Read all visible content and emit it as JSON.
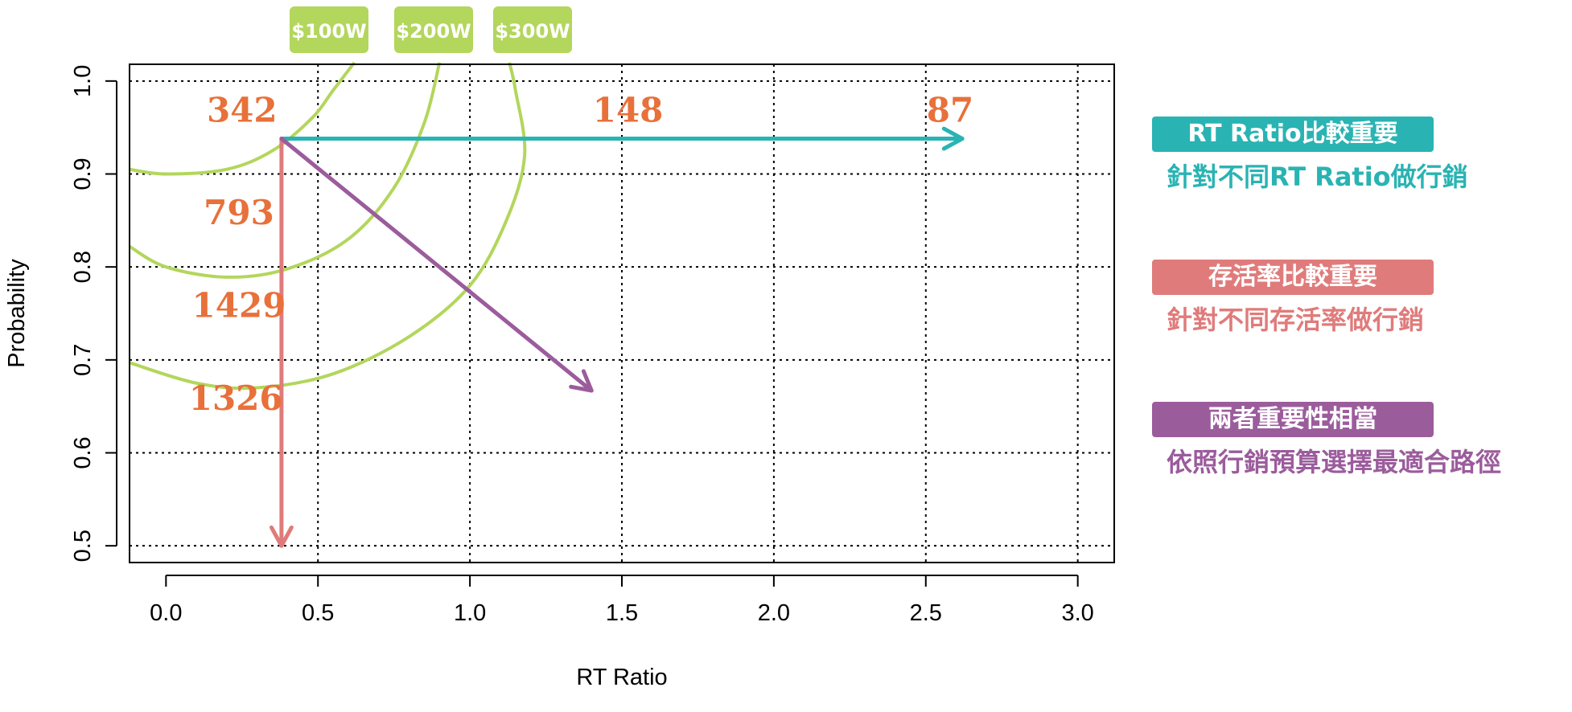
{
  "chart_data": {
    "type": "line",
    "xlabel": "RT Ratio",
    "ylabel": "Probability",
    "xlim": [
      -0.12,
      3.12
    ],
    "ylim": [
      0.482,
      1.018
    ],
    "x_ticks": [
      "0.0",
      "0.5",
      "1.0",
      "1.5",
      "2.0",
      "2.5",
      "3.0"
    ],
    "y_ticks": [
      "0.5",
      "0.6",
      "0.7",
      "0.8",
      "0.9",
      "1.0"
    ],
    "grid": true,
    "budget_labels": [
      "$100W",
      "$200W",
      "$300W"
    ],
    "budget_color": "#b3d65c",
    "budget_curves": [
      {
        "name": "$100W",
        "points": [
          [
            -0.12,
            0.905
          ],
          [
            0.0,
            0.9
          ],
          [
            0.2,
            0.905
          ],
          [
            0.35,
            0.925
          ],
          [
            0.48,
            0.96
          ],
          [
            0.55,
            0.99
          ],
          [
            0.62,
            1.02
          ]
        ]
      },
      {
        "name": "$200W",
        "points": [
          [
            -0.12,
            0.822
          ],
          [
            0.0,
            0.8
          ],
          [
            0.2,
            0.789
          ],
          [
            0.4,
            0.798
          ],
          [
            0.6,
            0.83
          ],
          [
            0.75,
            0.885
          ],
          [
            0.85,
            0.955
          ],
          [
            0.9,
            1.02
          ]
        ]
      },
      {
        "name": "$300W",
        "points": [
          [
            -0.12,
            0.697
          ],
          [
            0.1,
            0.675
          ],
          [
            0.3,
            0.67
          ],
          [
            0.55,
            0.685
          ],
          [
            0.8,
            0.725
          ],
          [
            1.0,
            0.78
          ],
          [
            1.12,
            0.85
          ],
          [
            1.18,
            0.92
          ],
          [
            1.15,
            0.99
          ],
          [
            1.13,
            1.02
          ]
        ]
      }
    ],
    "segment_counts": [
      {
        "label": "342",
        "x": 0.25,
        "y": 0.97
      },
      {
        "label": "793",
        "x": 0.24,
        "y": 0.86
      },
      {
        "label": "1429",
        "x": 0.24,
        "y": 0.76
      },
      {
        "label": "1326",
        "x": 0.23,
        "y": 0.66
      },
      {
        "label": "148",
        "x": 1.52,
        "y": 0.97
      },
      {
        "label": "87",
        "x": 2.58,
        "y": 0.97
      }
    ],
    "count_color": "#e8703a",
    "arrows": [
      {
        "name": "RT Ratio比較重要",
        "from": [
          0.38,
          0.938
        ],
        "to": [
          2.62,
          0.938
        ],
        "color": "#2ab3b3"
      },
      {
        "name": "存活率比較重要",
        "from": [
          0.38,
          0.938
        ],
        "to": [
          0.38,
          0.5
        ],
        "color": "#e07b7b"
      },
      {
        "name": "兩者重要性相當",
        "from": [
          0.38,
          0.938
        ],
        "to": [
          1.4,
          0.667
        ],
        "color": "#9b5c9c"
      }
    ]
  },
  "legend": [
    {
      "title": "RT Ratio比較重要",
      "desc": "針對不同RT Ratio做行銷",
      "color": "#2ab3b3"
    },
    {
      "title": "存活率比較重要",
      "desc": "針對不同存活率做行銷",
      "color": "#e07b7b"
    },
    {
      "title": "兩者重要性相當",
      "desc": "依照行銷預算選擇最適合路徑",
      "color": "#9b5c9c"
    }
  ]
}
